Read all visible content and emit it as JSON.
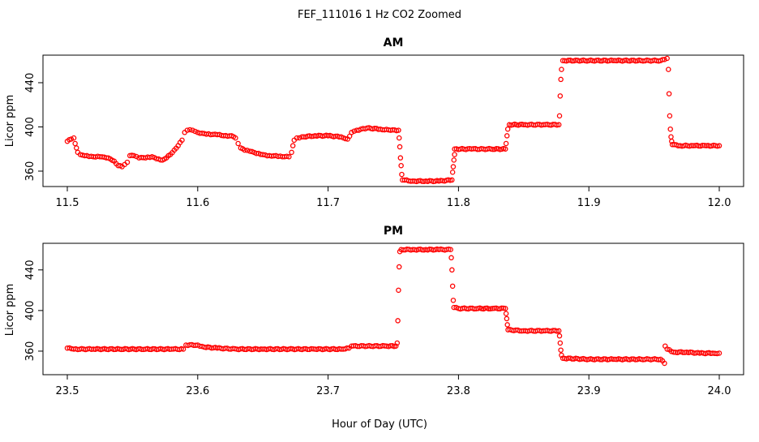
{
  "figure": {
    "suptitle": "FEF_111016 1 Hz CO2 Zoomed",
    "xlabel": "Hour of Day (UTC)"
  },
  "chart_data": [
    {
      "type": "scatter",
      "title": "AM",
      "ylabel": "Licor ppm",
      "xlim": [
        11.5,
        12.0
      ],
      "ylim": [
        349,
        462
      ],
      "xticks": [
        "11.5",
        "11.6",
        "11.7",
        "11.8",
        "11.9",
        "12.0"
      ],
      "xtick_values": [
        11.5,
        11.6,
        11.7,
        11.8,
        11.9,
        12.0
      ],
      "yticks": [
        "360",
        "400",
        "440"
      ],
      "ytick_values": [
        360,
        400,
        440
      ],
      "grid": false,
      "marker_color": "#ff0000",
      "series": [
        {
          "points": [
            [
              11.5,
              387
            ],
            [
              11.503,
              389
            ],
            [
              11.505,
              390
            ],
            [
              11.506,
              385
            ],
            [
              11.507,
              381
            ],
            [
              11.508,
              377
            ],
            [
              11.51,
              375
            ],
            [
              11.515,
              374
            ],
            [
              11.52,
              373
            ],
            [
              11.525,
              373
            ],
            [
              11.53,
              372
            ],
            [
              11.533,
              371
            ],
            [
              11.536,
              369
            ],
            [
              11.539,
              365
            ],
            [
              11.542,
              364
            ],
            [
              11.544,
              366
            ],
            [
              11.546,
              368
            ],
            [
              11.548,
              374
            ],
            [
              11.551,
              374
            ],
            [
              11.555,
              372
            ],
            [
              11.56,
              372
            ],
            [
              11.565,
              373
            ],
            [
              11.57,
              371
            ],
            [
              11.573,
              370
            ],
            [
              11.576,
              372
            ],
            [
              11.579,
              375
            ],
            [
              11.582,
              379
            ],
            [
              11.585,
              383
            ],
            [
              11.588,
              388
            ],
            [
              11.59,
              395
            ],
            [
              11.592,
              397
            ],
            [
              11.596,
              397
            ],
            [
              11.6,
              395
            ],
            [
              11.605,
              394
            ],
            [
              11.61,
              393
            ],
            [
              11.615,
              393
            ],
            [
              11.62,
              392
            ],
            [
              11.626,
              392
            ],
            [
              11.629,
              390
            ],
            [
              11.631,
              385
            ],
            [
              11.633,
              381
            ],
            [
              11.636,
              379
            ],
            [
              11.64,
              378
            ],
            [
              11.645,
              376
            ],
            [
              11.65,
              375
            ],
            [
              11.655,
              374
            ],
            [
              11.66,
              374
            ],
            [
              11.665,
              373
            ],
            [
              11.67,
              373
            ],
            [
              11.672,
              377
            ],
            [
              11.673,
              383
            ],
            [
              11.674,
              388
            ],
            [
              11.676,
              390
            ],
            [
              11.68,
              391
            ],
            [
              11.69,
              392
            ],
            [
              11.7,
              392
            ],
            [
              11.71,
              391
            ],
            [
              11.715,
              389
            ],
            [
              11.718,
              395
            ],
            [
              11.722,
              397
            ],
            [
              11.73,
              399
            ],
            [
              11.74,
              398
            ],
            [
              11.748,
              397
            ],
            [
              11.754,
              397
            ],
            [
              11.7545,
              390
            ],
            [
              11.755,
              382
            ],
            [
              11.7555,
              372
            ],
            [
              11.756,
              365
            ],
            [
              11.7565,
              357
            ],
            [
              11.757,
              352
            ],
            [
              11.765,
              351
            ],
            [
              11.775,
              351
            ],
            [
              11.785,
              351
            ],
            [
              11.795,
              352
            ],
            [
              11.7955,
              359
            ],
            [
              11.796,
              364
            ],
            [
              11.7965,
              370
            ],
            [
              11.797,
              375
            ],
            [
              11.797,
              380
            ],
            [
              11.81,
              380
            ],
            [
              11.825,
              380
            ],
            [
              11.836,
              380
            ],
            [
              11.8365,
              385
            ],
            [
              11.8372,
              392
            ],
            [
              11.8378,
              398
            ],
            [
              11.839,
              402
            ],
            [
              11.85,
              402
            ],
            [
              11.865,
              402
            ],
            [
              11.877,
              402
            ],
            [
              11.8775,
              410
            ],
            [
              11.878,
              428
            ],
            [
              11.8785,
              443
            ],
            [
              11.879,
              452
            ],
            [
              11.88,
              460
            ],
            [
              11.9,
              460
            ],
            [
              11.92,
              460
            ],
            [
              11.94,
              460
            ],
            [
              11.955,
              460
            ],
            [
              11.958,
              461
            ],
            [
              11.96,
              462
            ],
            [
              11.961,
              452
            ],
            [
              11.9615,
              430
            ],
            [
              11.962,
              410
            ],
            [
              11.9625,
              398
            ],
            [
              11.963,
              391
            ],
            [
              11.9635,
              387
            ],
            [
              11.964,
              384
            ],
            [
              11.97,
              383
            ],
            [
              11.98,
              383
            ],
            [
              11.99,
              383
            ],
            [
              12.0,
              383
            ]
          ]
        }
      ]
    },
    {
      "type": "scatter",
      "title": "PM",
      "ylabel": "Licor ppm",
      "xlim": [
        23.5,
        24.0
      ],
      "ylim": [
        340,
        463
      ],
      "xticks": [
        "23.5",
        "23.6",
        "23.7",
        "23.8",
        "23.9",
        "24.0"
      ],
      "xtick_values": [
        23.5,
        23.6,
        23.7,
        23.8,
        23.9,
        24.0
      ],
      "yticks": [
        "360",
        "400",
        "440"
      ],
      "ytick_values": [
        360,
        400,
        440
      ],
      "grid": false,
      "marker_color": "#ff0000",
      "series": [
        {
          "points": [
            [
              23.5,
              363
            ],
            [
              23.505,
              362
            ],
            [
              23.52,
              362
            ],
            [
              23.54,
              362
            ],
            [
              23.56,
              362
            ],
            [
              23.58,
              362
            ],
            [
              23.589,
              362
            ],
            [
              23.591,
              366
            ],
            [
              23.6,
              366
            ],
            [
              23.605,
              364
            ],
            [
              23.615,
              363
            ],
            [
              23.63,
              362
            ],
            [
              23.65,
              362
            ],
            [
              23.67,
              362
            ],
            [
              23.69,
              362
            ],
            [
              23.71,
              362
            ],
            [
              23.716,
              363
            ],
            [
              23.718,
              365
            ],
            [
              23.73,
              365
            ],
            [
              23.745,
              365
            ],
            [
              23.752,
              365
            ],
            [
              23.753,
              368
            ],
            [
              23.7535,
              390
            ],
            [
              23.754,
              420
            ],
            [
              23.7545,
              443
            ],
            [
              23.755,
              458
            ],
            [
              23.756,
              460
            ],
            [
              23.765,
              460
            ],
            [
              23.775,
              460
            ],
            [
              23.785,
              460
            ],
            [
              23.794,
              460
            ],
            [
              23.7945,
              452
            ],
            [
              23.795,
              440
            ],
            [
              23.7955,
              424
            ],
            [
              23.796,
              410
            ],
            [
              23.7965,
              403
            ],
            [
              23.8,
              402
            ],
            [
              23.815,
              402
            ],
            [
              23.826,
              402
            ],
            [
              23.836,
              402
            ],
            [
              23.8365,
              397
            ],
            [
              23.837,
              392
            ],
            [
              23.8375,
              386
            ],
            [
              23.838,
              381
            ],
            [
              23.85,
              380
            ],
            [
              23.865,
              380
            ],
            [
              23.877,
              380
            ],
            [
              23.8775,
              375
            ],
            [
              23.878,
              368
            ],
            [
              23.8785,
              361
            ],
            [
              23.879,
              356
            ],
            [
              23.88,
              353
            ],
            [
              23.9,
              352
            ],
            [
              23.92,
              352
            ],
            [
              23.94,
              352
            ],
            [
              23.955,
              352
            ],
            [
              23.958,
              348
            ],
            [
              23.9585,
              365
            ],
            [
              23.96,
              362
            ],
            [
              23.965,
              359
            ],
            [
              23.975,
              359
            ],
            [
              23.985,
              358
            ],
            [
              23.995,
              358
            ],
            [
              24.0,
              358
            ]
          ]
        }
      ]
    }
  ]
}
